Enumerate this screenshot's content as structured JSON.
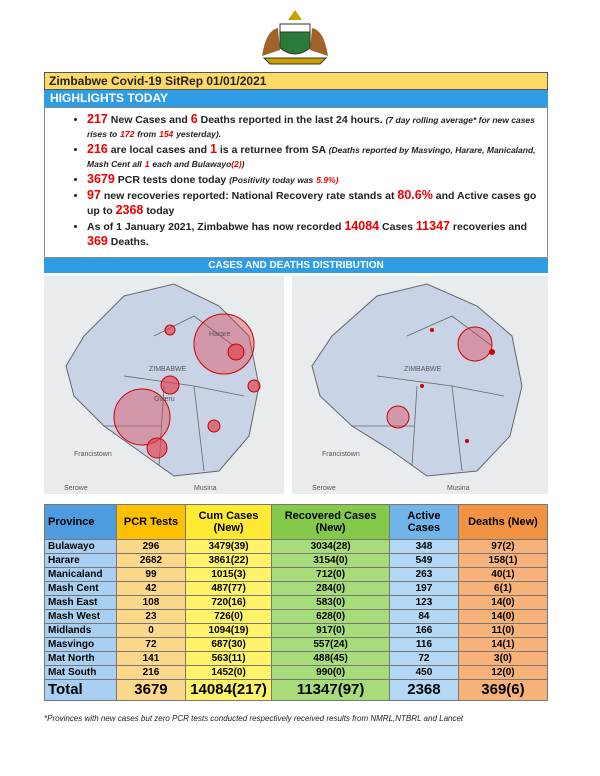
{
  "header": {
    "title": "Zimbabwe Covid-19 SitRep 01/01/2021",
    "highlights_heading": "HIGHLIGHTS TODAY"
  },
  "highlights": [
    [
      "217",
      "New Cases and",
      "6",
      "Deaths reported in the last 24 hours.",
      "(7 day rolling average* for new cases rises to",
      "172",
      "from",
      "154",
      "yesterday)."
    ],
    [
      "216",
      "are local cases and",
      "1",
      "is a returnee from SA",
      "(Deaths reported by Masvingo, Harare, Manicaland, Mash Cent all",
      "1",
      "each and Bulawayo",
      "(2)",
      ")"
    ],
    [
      "3679",
      "PCR tests done today",
      "(Positivity today was",
      "5.9%)"
    ],
    [
      "97",
      "new recoveries reported: National Recovery rate stands at",
      "80.6%",
      "and Active cases go up to",
      "2368",
      "today"
    ],
    [
      "As of 1 January 2021, Zimbabwe has now recorded",
      "14084",
      "Cases",
      "11347",
      "recoveries and",
      "369",
      "Deaths."
    ]
  ],
  "distribution": {
    "heading": "CASES AND DEATHS DISTRIBUTION",
    "map_labels": [
      "ZIMBABWE",
      "Francistown",
      "Serowe",
      "Musina",
      "Gweru",
      "Harare"
    ]
  },
  "table": {
    "header": [
      "Province",
      "PCR Tests",
      "Cum Cases (New)",
      "Recovered Cases (New)",
      "Active Cases",
      "Deaths (New)"
    ],
    "rows": [
      [
        "Bulawayo",
        "296",
        "3479(39)",
        "3034(28)",
        "348",
        "97(2)"
      ],
      [
        "Harare",
        "2682",
        "3861(22)",
        "3154(0)",
        "549",
        "158(1)"
      ],
      [
        "Manicaland",
        "99",
        "1015(3)",
        "712(0)",
        "263",
        "40(1)"
      ],
      [
        "Mash Cent",
        "42",
        "487(77)",
        "284(0)",
        "197",
        "6(1)"
      ],
      [
        "Mash East",
        "108",
        "720(16)",
        "583(0)",
        "123",
        "14(0)"
      ],
      [
        "Mash West",
        "23",
        "726(0)",
        "628(0)",
        "84",
        "14(0)"
      ],
      [
        "Midlands",
        "0",
        "1094(19)",
        "917(0)",
        "166",
        "11(0)"
      ],
      [
        "Masvingo",
        "72",
        "687(30)",
        "557(24)",
        "116",
        "14(1)"
      ],
      [
        "Mat North",
        "141",
        "563(11)",
        "488(45)",
        "72",
        "3(0)"
      ],
      [
        "Mat South",
        "216",
        "1452(0)",
        "990(0)",
        "450",
        "12(0)"
      ]
    ],
    "total": [
      "Total",
      "3679",
      "14084(217)",
      "11347(97)",
      "2368",
      "369(6)"
    ]
  },
  "footnote": "*Provinces  with new cases but zero  PCR tests conducted respectively received results from NMRL,NTBRL and Lancet"
}
